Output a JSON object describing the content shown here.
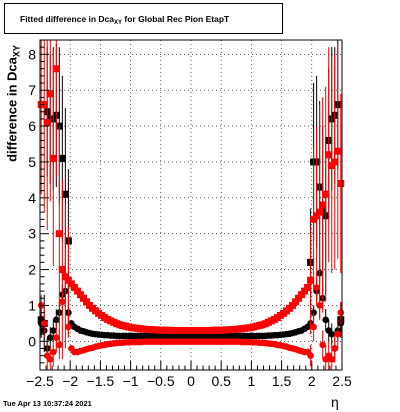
{
  "title": {
    "prefix": "Fitted difference in Dca",
    "sub": "XY",
    "suffix": " for Global Rec Pion EtapT"
  },
  "ylabel": {
    "main": "difference in Dca",
    "sub": "XY"
  },
  "xlabel": "η",
  "timestamp": "Tue Apr 13 10:37:24 2021",
  "chart_data": {
    "type": "scatter",
    "title": "Fitted difference in Dca_XY for Global Rec Pion EtapT",
    "xlabel": "η",
    "ylabel": "difference in Dca_XY",
    "xlim": [
      -2.5,
      2.5
    ],
    "ylim": [
      -0.8,
      8.4
    ],
    "xticks": [
      -2.5,
      -2,
      -1.5,
      -1,
      -0.5,
      0,
      0.5,
      1,
      1.5,
      2,
      2.5
    ],
    "xtick_labels": [
      "−2.5",
      "−2",
      "−1.5",
      "−1",
      "−0.5",
      "0",
      "0.5",
      "1",
      "1.5",
      "2",
      "2.5"
    ],
    "yticks": [
      0,
      1,
      2,
      3,
      4,
      5,
      6,
      7,
      8
    ],
    "ytick_labels": [
      "0",
      "1",
      "2",
      "3",
      "4",
      "5",
      "6",
      "7",
      "8"
    ],
    "grid": true,
    "series": [
      {
        "color": "#000000",
        "marker": "square",
        "x": [
          -2.48,
          -2.43,
          -2.38,
          -2.33,
          -2.28,
          -2.23,
          -2.18,
          -2.13,
          -2.08,
          -2.03,
          1.98,
          2.03,
          2.08,
          2.13,
          2.18,
          2.23,
          2.28,
          2.33,
          2.38,
          2.43,
          2.48
        ],
        "y": [
          0.6,
          0.5,
          6.4,
          6.2,
          6.2,
          6.3,
          6.0,
          5.1,
          4.1,
          2.8,
          2.2,
          5.0,
          5.0,
          4.3,
          3.7,
          3.5,
          5.6,
          6.2,
          6.3,
          6.6,
          0.6
        ],
        "err": [
          0.5,
          0.8,
          1.8,
          1.8,
          2.0,
          2.0,
          2.2,
          2.3,
          2.4,
          2.0,
          1.5,
          2.2,
          2.4,
          2.4,
          2.3,
          2.2,
          2.0,
          2.0,
          1.9,
          1.8,
          0.5
        ]
      },
      {
        "color": "#000000",
        "marker": "circle",
        "x": [
          -2.48,
          -2.43,
          -2.38,
          -2.33,
          -2.28,
          -2.23,
          -2.18,
          -2.13,
          -2.08,
          -2.03,
          -1.98,
          -1.93,
          -1.88,
          -1.83,
          -1.78,
          -1.73,
          -1.68,
          -1.63,
          -1.58,
          -1.53,
          -1.48,
          -1.43,
          -1.38,
          -1.33,
          -1.28,
          -1.23,
          -1.18,
          -1.13,
          -1.08,
          -1.03,
          -0.98,
          -0.93,
          -0.88,
          -0.83,
          -0.78,
          -0.73,
          -0.68,
          -0.63,
          -0.58,
          -0.53,
          -0.48,
          -0.43,
          -0.38,
          -0.33,
          -0.28,
          -0.23,
          -0.18,
          -0.13,
          -0.08,
          -0.03,
          0.03,
          0.08,
          0.13,
          0.18,
          0.23,
          0.28,
          0.33,
          0.38,
          0.43,
          0.48,
          0.53,
          0.58,
          0.63,
          0.68,
          0.73,
          0.78,
          0.83,
          0.88,
          0.93,
          0.98,
          1.03,
          1.08,
          1.13,
          1.18,
          1.23,
          1.28,
          1.33,
          1.38,
          1.43,
          1.48,
          1.53,
          1.58,
          1.63,
          1.68,
          1.73,
          1.78,
          1.83,
          1.88,
          1.93,
          1.98,
          2.03,
          2.08,
          2.13,
          2.18,
          2.23,
          2.28,
          2.33,
          2.38,
          2.43,
          2.48
        ],
        "y": [
          0.5,
          0.3,
          -0.2,
          0.1,
          0.3,
          0.6,
          0.8,
          1.3,
          1.4,
          0.8,
          0.5,
          0.4,
          0.35,
          0.3,
          0.28,
          0.25,
          0.23,
          0.21,
          0.2,
          0.19,
          0.18,
          0.17,
          0.17,
          0.16,
          0.16,
          0.15,
          0.15,
          0.15,
          0.15,
          0.15,
          0.15,
          0.15,
          0.15,
          0.15,
          0.15,
          0.15,
          0.15,
          0.15,
          0.15,
          0.15,
          0.15,
          0.15,
          0.15,
          0.15,
          0.15,
          0.15,
          0.15,
          0.15,
          0.15,
          0.15,
          0.15,
          0.15,
          0.15,
          0.15,
          0.15,
          0.15,
          0.15,
          0.15,
          0.15,
          0.15,
          0.15,
          0.15,
          0.15,
          0.15,
          0.15,
          0.15,
          0.15,
          0.15,
          0.15,
          0.15,
          0.15,
          0.15,
          0.15,
          0.15,
          0.15,
          0.16,
          0.16,
          0.17,
          0.17,
          0.18,
          0.19,
          0.2,
          0.21,
          0.23,
          0.25,
          0.28,
          0.3,
          0.35,
          0.4,
          0.5,
          0.8,
          1.4,
          1.9,
          1.2,
          0.6,
          0.3,
          0.2,
          -0.2,
          0.3,
          0.5
        ],
        "err": [
          0.3,
          0.3,
          0.3,
          0.3,
          0.3,
          0.3,
          0.3,
          0.3,
          0.3,
          0.2,
          0.05,
          0.05,
          0.05,
          0.05,
          0.05,
          0.05,
          0.05,
          0.05,
          0.05,
          0.05,
          0.05,
          0.05,
          0.05,
          0.05,
          0.05,
          0.05,
          0.05,
          0.05,
          0.05,
          0.05,
          0.05,
          0.05,
          0.05,
          0.05,
          0.05,
          0.05,
          0.05,
          0.05,
          0.05,
          0.05,
          0.05,
          0.05,
          0.05,
          0.05,
          0.05,
          0.05,
          0.05,
          0.05,
          0.05,
          0.05,
          0.05,
          0.05,
          0.05,
          0.05,
          0.05,
          0.05,
          0.05,
          0.05,
          0.05,
          0.05,
          0.05,
          0.05,
          0.05,
          0.05,
          0.05,
          0.05,
          0.05,
          0.05,
          0.05,
          0.05,
          0.05,
          0.05,
          0.05,
          0.05,
          0.05,
          0.05,
          0.05,
          0.05,
          0.05,
          0.05,
          0.05,
          0.05,
          0.05,
          0.05,
          0.05,
          0.05,
          0.05,
          0.05,
          0.05,
          0.05,
          0.2,
          0.3,
          0.3,
          0.3,
          0.3,
          0.3,
          0.3,
          0.3,
          0.3,
          0.3
        ]
      },
      {
        "color": "#ff0000",
        "marker": "square",
        "x": [
          -2.48,
          -2.43,
          -2.38,
          -2.33,
          -2.28,
          -2.23,
          -2.18,
          -2.13,
          -2.08,
          -2.03,
          -1.98,
          -1.93,
          -1.88,
          -1.83,
          -1.78,
          -1.73,
          -1.68,
          -1.63,
          -1.58,
          -1.53,
          -1.48,
          -1.43,
          -1.38,
          -1.33,
          -1.28,
          -1.23,
          -1.18,
          -1.13,
          -1.08,
          -1.03,
          -0.98,
          -0.93,
          -0.88,
          -0.83,
          -0.78,
          -0.73,
          -0.68,
          -0.63,
          -0.58,
          -0.53,
          -0.48,
          -0.43,
          -0.38,
          -0.33,
          -0.28,
          -0.23,
          -0.18,
          -0.13,
          -0.08,
          -0.03,
          0.03,
          0.08,
          0.13,
          0.18,
          0.23,
          0.28,
          0.33,
          0.38,
          0.43,
          0.48,
          0.53,
          0.58,
          0.63,
          0.68,
          0.73,
          0.78,
          0.83,
          0.88,
          0.93,
          0.98,
          1.03,
          1.08,
          1.13,
          1.18,
          1.23,
          1.28,
          1.33,
          1.38,
          1.43,
          1.48,
          1.53,
          1.58,
          1.63,
          1.68,
          1.73,
          1.78,
          1.83,
          1.88,
          1.93,
          1.98,
          2.03,
          2.08,
          2.13,
          2.18,
          2.23,
          2.28,
          2.33,
          2.38,
          2.43,
          2.48
        ],
        "y": [
          6.6,
          6.6,
          6.1,
          6.9,
          5.1,
          7.6,
          3.0,
          2.0,
          1.8,
          1.7,
          1.6,
          1.5,
          1.4,
          1.3,
          1.2,
          1.1,
          1.0,
          0.92,
          0.85,
          0.78,
          0.72,
          0.66,
          0.61,
          0.57,
          0.53,
          0.49,
          0.46,
          0.44,
          0.42,
          0.4,
          0.38,
          0.37,
          0.36,
          0.35,
          0.34,
          0.33,
          0.33,
          0.32,
          0.32,
          0.31,
          0.31,
          0.31,
          0.31,
          0.3,
          0.3,
          0.3,
          0.3,
          0.3,
          0.3,
          0.3,
          0.3,
          0.3,
          0.3,
          0.3,
          0.3,
          0.3,
          0.3,
          0.31,
          0.31,
          0.31,
          0.31,
          0.32,
          0.32,
          0.33,
          0.33,
          0.34,
          0.35,
          0.36,
          0.37,
          0.38,
          0.4,
          0.42,
          0.44,
          0.46,
          0.49,
          0.53,
          0.57,
          0.61,
          0.66,
          0.72,
          0.78,
          0.85,
          0.92,
          1.0,
          1.1,
          1.2,
          1.3,
          1.4,
          1.5,
          1.7,
          3.4,
          3.5,
          3.6,
          3.8,
          4.1,
          5.2,
          4.9,
          5.0,
          5.3,
          4.4
        ],
        "err": [
          2.5,
          3.0,
          3.0,
          3.0,
          3.0,
          3.0,
          3.0,
          2.5,
          2.0,
          1.5,
          0.05,
          0.05,
          0.05,
          0.05,
          0.05,
          0.05,
          0.05,
          0.05,
          0.05,
          0.05,
          0.05,
          0.05,
          0.05,
          0.05,
          0.05,
          0.05,
          0.05,
          0.05,
          0.05,
          0.05,
          0.05,
          0.05,
          0.05,
          0.05,
          0.05,
          0.05,
          0.05,
          0.05,
          0.05,
          0.05,
          0.05,
          0.05,
          0.05,
          0.05,
          0.05,
          0.05,
          0.05,
          0.05,
          0.05,
          0.05,
          0.05,
          0.05,
          0.05,
          0.05,
          0.05,
          0.05,
          0.05,
          0.05,
          0.05,
          0.05,
          0.05,
          0.05,
          0.05,
          0.05,
          0.05,
          0.05,
          0.05,
          0.05,
          0.05,
          0.05,
          0.05,
          0.05,
          0.05,
          0.05,
          0.05,
          0.05,
          0.05,
          0.05,
          0.05,
          0.05,
          0.05,
          0.05,
          0.05,
          0.05,
          0.05,
          0.05,
          0.05,
          0.05,
          0.05,
          1.5,
          2.0,
          2.5,
          3.0,
          3.0,
          3.0,
          3.0,
          3.0,
          3.0,
          3.0,
          2.5
        ]
      },
      {
        "color": "#ff0000",
        "marker": "circle",
        "x": [
          -2.48,
          -2.43,
          -2.38,
          -2.33,
          -2.28,
          -2.23,
          -2.18,
          -2.13,
          -2.08,
          -2.03,
          -1.98,
          -1.93,
          -1.88,
          -1.83,
          -1.78,
          -1.73,
          -1.68,
          -1.63,
          -1.58,
          -1.53,
          -1.48,
          -1.43,
          -1.38,
          -1.33,
          -1.28,
          -1.23,
          -1.18,
          -1.13,
          -1.08,
          -1.03,
          -0.98,
          -0.93,
          -0.88,
          -0.83,
          -0.78,
          -0.73,
          -0.68,
          -0.63,
          -0.58,
          -0.53,
          -0.48,
          -0.43,
          -0.38,
          -0.33,
          -0.28,
          -0.23,
          -0.18,
          -0.13,
          -0.08,
          -0.03,
          0.03,
          0.08,
          0.13,
          0.18,
          0.23,
          0.28,
          0.33,
          0.38,
          0.43,
          0.48,
          0.53,
          0.58,
          0.63,
          0.68,
          0.73,
          0.78,
          0.83,
          0.88,
          0.93,
          0.98,
          1.03,
          1.08,
          1.13,
          1.18,
          1.23,
          1.28,
          1.33,
          1.38,
          1.43,
          1.48,
          1.53,
          1.58,
          1.63,
          1.68,
          1.73,
          1.78,
          1.83,
          1.88,
          1.93,
          1.98,
          2.03,
          2.08,
          2.13,
          2.18,
          2.23,
          2.28,
          2.33,
          2.38,
          2.43,
          2.48
        ],
        "y": [
          1.0,
          0.5,
          -0.4,
          -0.5,
          -0.3,
          0.1,
          -0.1,
          1.1,
          1.8,
          0.4,
          -0.2,
          -0.3,
          -0.3,
          -0.27,
          -0.25,
          -0.22,
          -0.2,
          -0.18,
          -0.15,
          -0.13,
          -0.11,
          -0.1,
          -0.08,
          -0.07,
          -0.06,
          -0.05,
          -0.04,
          -0.04,
          -0.03,
          -0.03,
          -0.02,
          -0.02,
          -0.02,
          -0.02,
          -0.01,
          -0.01,
          -0.01,
          -0.01,
          -0.01,
          -0.01,
          -0.01,
          -0.01,
          -0.01,
          -0.01,
          -0.01,
          -0.01,
          -0.01,
          -0.01,
          -0.01,
          -0.01,
          -0.01,
          -0.01,
          -0.01,
          -0.01,
          -0.01,
          -0.01,
          -0.01,
          -0.01,
          -0.01,
          -0.01,
          -0.01,
          -0.01,
          -0.01,
          -0.01,
          -0.01,
          -0.01,
          -0.02,
          -0.02,
          -0.02,
          -0.02,
          -0.03,
          -0.03,
          -0.04,
          -0.04,
          -0.05,
          -0.06,
          -0.07,
          -0.08,
          -0.1,
          -0.11,
          -0.13,
          -0.15,
          -0.18,
          -0.2,
          -0.22,
          -0.25,
          -0.27,
          -0.3,
          -0.3,
          -0.4,
          0.4,
          1.5,
          1.0,
          -0.1,
          -0.5,
          -0.4,
          -0.5,
          -0.2,
          0.2,
          0.8
        ],
        "err": [
          0.3,
          0.4,
          0.4,
          0.4,
          0.4,
          0.4,
          0.4,
          0.4,
          0.4,
          0.3,
          0.05,
          0.05,
          0.05,
          0.05,
          0.05,
          0.05,
          0.05,
          0.05,
          0.05,
          0.05,
          0.05,
          0.05,
          0.05,
          0.05,
          0.05,
          0.05,
          0.05,
          0.05,
          0.05,
          0.05,
          0.05,
          0.05,
          0.05,
          0.05,
          0.05,
          0.05,
          0.05,
          0.05,
          0.05,
          0.05,
          0.05,
          0.05,
          0.05,
          0.05,
          0.05,
          0.05,
          0.05,
          0.05,
          0.05,
          0.05,
          0.05,
          0.05,
          0.05,
          0.05,
          0.05,
          0.05,
          0.05,
          0.05,
          0.05,
          0.05,
          0.05,
          0.05,
          0.05,
          0.05,
          0.05,
          0.05,
          0.05,
          0.05,
          0.05,
          0.05,
          0.05,
          0.05,
          0.05,
          0.05,
          0.05,
          0.05,
          0.05,
          0.05,
          0.05,
          0.05,
          0.05,
          0.05,
          0.05,
          0.05,
          0.05,
          0.05,
          0.05,
          0.05,
          0.05,
          0.3,
          0.4,
          0.4,
          0.4,
          0.4,
          0.4,
          0.4,
          0.4,
          0.4,
          0.4,
          0.3
        ]
      }
    ]
  }
}
